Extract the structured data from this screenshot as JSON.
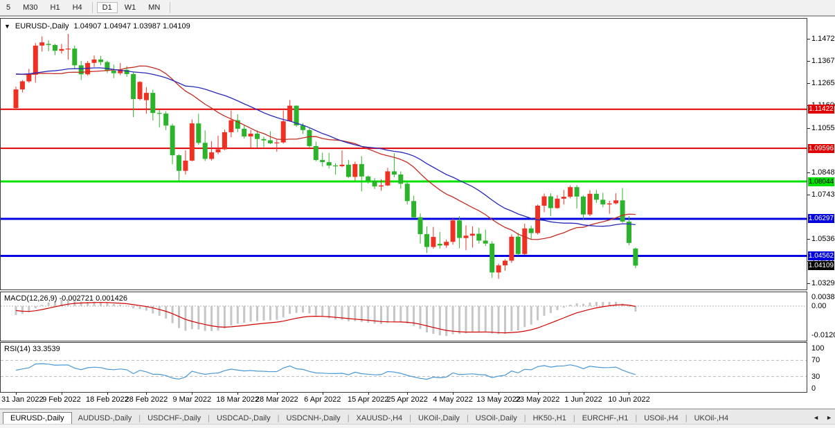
{
  "toolbar": {
    "items": [
      "5",
      "M30",
      "H1",
      "H4",
      "|",
      "D1",
      "W1",
      "MN",
      "|"
    ],
    "active": "D1"
  },
  "header": {
    "dropdown_icon": "▼",
    "symbol": "EURUSD-,Daily",
    "ohlc": "1.04907 1.04947 1.03987 1.04109"
  },
  "macd_panel": {
    "label": "MACD(12,26,9)",
    "values": "-0.002721 0.001426",
    "axis_labels": [
      "0.003865",
      "0.00",
      "-0.01208"
    ]
  },
  "rsi_panel": {
    "label": "RSI(14)",
    "value": "33.3539",
    "axis_labels": [
      "100",
      "70",
      "30",
      "0"
    ]
  },
  "tabbar": {
    "tabs": [
      {
        "label": "EURUSD-,Daily",
        "active": true
      },
      {
        "label": "AUDUSD-,Daily",
        "active": false
      },
      {
        "label": "USDCHF-,Daily",
        "active": false
      },
      {
        "label": "USDCAD-,Daily",
        "active": false
      },
      {
        "label": "USDCNH-,Daily",
        "active": false
      },
      {
        "label": "XAUUSD-,H4",
        "active": false
      },
      {
        "label": "UKOil-,Daily",
        "active": false
      },
      {
        "label": "USOil-,Daily",
        "active": false
      },
      {
        "label": "HK50-,H1",
        "active": false
      },
      {
        "label": "EURCHF-,H1",
        "active": false
      },
      {
        "label": "USOil-,H4",
        "active": false
      },
      {
        "label": "UKOil-,H4",
        "active": false
      }
    ],
    "left_arrow": "◄",
    "right_arrow": "►"
  },
  "chart_data": {
    "type": "candlestick",
    "title": "EURUSD-,Daily",
    "last_bar": {
      "open": 1.04907,
      "high": 1.04947,
      "low": 1.03987,
      "close": 1.04109
    },
    "current_price": 1.04109,
    "colors": {
      "bull": "#ef3124",
      "bear": "#2bb42b",
      "ma_fast": "#c62b21",
      "ma_slow": "#2828bb",
      "macd_hist": "#c6c6c6",
      "macd_signal": "#d40000",
      "rsi_line": "#4997d8",
      "level_dash": "#b8b8b8"
    },
    "price_axis_ticks": [
      "1.14720",
      "1.13670",
      "1.12650",
      "1.11600",
      "1.10550",
      "1.08480",
      "1.07430",
      "1.05360",
      "1.04310",
      "1.03290"
    ],
    "price_axis_badges": [
      {
        "text": "1.11422",
        "price": 1.11422,
        "bg": "#e10000",
        "fg": "#ffffff"
      },
      {
        "text": "1.09596",
        "price": 1.09596,
        "bg": "#e10000",
        "fg": "#ffffff"
      },
      {
        "text": "1.08044",
        "price": 1.08044,
        "bg": "#00e200",
        "fg": "#000000"
      },
      {
        "text": "1.06297",
        "price": 1.06297,
        "bg": "#0000e1",
        "fg": "#ffffff"
      },
      {
        "text": "1.04562",
        "price": 1.04562,
        "bg": "#0000e1",
        "fg": "#ffffff"
      },
      {
        "text": "1.04109",
        "price": 1.04109,
        "bg": "#000000",
        "fg": "#ffffff"
      }
    ],
    "levels": [
      {
        "price": 1.11422,
        "color": "#e10000",
        "width": 2
      },
      {
        "price": 1.09596,
        "color": "#e10000",
        "width": 2
      },
      {
        "price": 1.08044,
        "color": "#00e200",
        "width": 3
      },
      {
        "price": 1.06297,
        "color": "#0000e1",
        "width": 3
      },
      {
        "price": 1.04562,
        "color": "#0000e1",
        "width": 3
      }
    ],
    "x_ticks": [
      {
        "label": "31 Jan 2022",
        "index": 0
      },
      {
        "label": "9 Feb 2022",
        "index": 7
      },
      {
        "label": "18 Feb 2022",
        "index": 14
      },
      {
        "label": "28 Feb 2022",
        "index": 20
      },
      {
        "label": "9 Mar 2022",
        "index": 27
      },
      {
        "label": "18 Mar 2022",
        "index": 34
      },
      {
        "label": "28 Mar 2022",
        "index": 40
      },
      {
        "label": "6 Apr 2022",
        "index": 47
      },
      {
        "label": "15 Apr 2022",
        "index": 54
      },
      {
        "label": "25 Apr 2022",
        "index": 60
      },
      {
        "label": "4 May 2022",
        "index": 67
      },
      {
        "label": "13 May 2022",
        "index": 74
      },
      {
        "label": "23 May 2022",
        "index": 80
      },
      {
        "label": "1 Jun 2022",
        "index": 87
      },
      {
        "label": "10 Jun 2022",
        "index": 94
      }
    ],
    "moving_averages": [
      {
        "type": "sma",
        "period": 20
      },
      {
        "type": "sma",
        "period": 30
      }
    ],
    "indicators": {
      "macd": {
        "fast": 12,
        "slow": 26,
        "signal": 9,
        "current_main": -0.002721,
        "current_signal": 0.001426,
        "axis_max": 0.003865,
        "axis_min": -0.01208
      },
      "rsi": {
        "period": 14,
        "current": 33.3539,
        "levels": [
          70,
          30
        ],
        "axis_max": 100,
        "axis_min": 0
      }
    },
    "prehistory_closes": [
      1.1337,
      1.132,
      1.1311,
      1.1286,
      1.1284,
      1.1268,
      1.1244,
      1.1285,
      1.1294,
      1.1315,
      1.1288,
      1.1293,
      1.1261,
      1.1286,
      1.1326,
      1.13,
      1.1244,
      1.1325,
      1.1328,
      1.1322,
      1.137,
      1.13,
      1.1285,
      1.1318,
      1.1307,
      1.129,
      1.1327,
      1.1357,
      1.1411,
      1.1453,
      1.144,
      1.1412,
      1.1316,
      1.134,
      1.1312,
      1.1303,
      1.1343,
      1.1324,
      1.1287,
      1.1245,
      1.131,
      1.115,
      1.1121,
      1.1148
    ],
    "candles": [
      [
        1.1148,
        1.1248,
        1.1141,
        1.1235
      ],
      [
        1.1235,
        1.1279,
        1.1221,
        1.1273
      ],
      [
        1.1273,
        1.1331,
        1.1266,
        1.1304
      ],
      [
        1.1304,
        1.1452,
        1.1267,
        1.144
      ],
      [
        1.144,
        1.1483,
        1.1412,
        1.1455
      ],
      [
        1.1448,
        1.1465,
        1.1414,
        1.1443
      ],
      [
        1.1443,
        1.1448,
        1.1396,
        1.1416
      ],
      [
        1.1416,
        1.1448,
        1.1403,
        1.1424
      ],
      [
        1.1424,
        1.1495,
        1.1374,
        1.1426
      ],
      [
        1.1426,
        1.144,
        1.133,
        1.1348
      ],
      [
        1.1348,
        1.1369,
        1.128,
        1.1306
      ],
      [
        1.1306,
        1.1368,
        1.13,
        1.1359
      ],
      [
        1.1359,
        1.1395,
        1.134,
        1.1375
      ],
      [
        1.1375,
        1.1392,
        1.1348,
        1.1363
      ],
      [
        1.1363,
        1.137,
        1.1312,
        1.1323
      ],
      [
        1.1323,
        1.1351,
        1.1288,
        1.1311
      ],
      [
        1.1311,
        1.1359,
        1.1302,
        1.1327
      ],
      [
        1.1327,
        1.1344,
        1.1294,
        1.1307
      ],
      [
        1.1307,
        1.1315,
        1.1106,
        1.119
      ],
      [
        1.119,
        1.1274,
        1.1184,
        1.127
      ],
      [
        1.1185,
        1.1246,
        1.1121,
        1.1219
      ],
      [
        1.1219,
        1.1234,
        1.109,
        1.1125
      ],
      [
        1.1125,
        1.114,
        1.1058,
        1.1122
      ],
      [
        1.1122,
        1.1133,
        1.1045,
        1.1066
      ],
      [
        1.1066,
        1.1075,
        1.0885,
        1.0927
      ],
      [
        1.0927,
        1.0932,
        1.0806,
        1.0854
      ],
      [
        1.0854,
        1.095,
        1.0837,
        1.0902
      ],
      [
        1.0902,
        1.1095,
        1.0899,
        1.1076
      ],
      [
        1.1076,
        1.1121,
        1.0976,
        1.0985
      ],
      [
        1.0985,
        1.1043,
        1.09,
        1.091
      ],
      [
        1.091,
        1.0993,
        1.0902,
        1.0941
      ],
      [
        1.0941,
        1.1019,
        1.0932,
        1.0955
      ],
      [
        1.0955,
        1.1047,
        1.0951,
        1.1035
      ],
      [
        1.1035,
        1.1137,
        1.1012,
        1.1091
      ],
      [
        1.1091,
        1.1119,
        1.1035,
        1.1051
      ],
      [
        1.1051,
        1.1069,
        1.1005,
        1.1015
      ],
      [
        1.1015,
        1.1046,
        1.0961,
        1.1028
      ],
      [
        1.1028,
        1.1044,
        1.0963,
        1.1003
      ],
      [
        1.1003,
        1.1014,
        1.0965,
        1.0997
      ],
      [
        1.0997,
        1.1039,
        1.0979,
        1.0983
      ],
      [
        1.0983,
        1.1,
        1.0944,
        1.0987
      ],
      [
        1.0987,
        1.1137,
        1.0982,
        1.1086
      ],
      [
        1.1086,
        1.1185,
        1.1084,
        1.1159
      ],
      [
        1.1159,
        1.116,
        1.106,
        1.1067
      ],
      [
        1.1067,
        1.1077,
        1.1027,
        1.1045
      ],
      [
        1.1045,
        1.1055,
        1.0961,
        1.097
      ],
      [
        1.097,
        1.0991,
        1.0899,
        1.0905
      ],
      [
        1.0905,
        1.0939,
        1.0874,
        1.0895
      ],
      [
        1.0895,
        1.0938,
        1.0865,
        1.0879
      ],
      [
        1.0879,
        1.089,
        1.0836,
        1.0876
      ],
      [
        1.0876,
        1.095,
        1.0872,
        1.0883
      ],
      [
        1.0883,
        1.0905,
        1.0821,
        1.0826
      ],
      [
        1.0826,
        1.0897,
        1.0809,
        1.0886
      ],
      [
        1.0886,
        1.0923,
        1.0758,
        1.0828
      ],
      [
        1.0828,
        1.0832,
        1.0795,
        1.0807
      ],
      [
        1.0807,
        1.082,
        1.0769,
        1.0781
      ],
      [
        1.0781,
        1.0815,
        1.0761,
        1.0786
      ],
      [
        1.0786,
        1.0868,
        1.0783,
        1.0852
      ],
      [
        1.0852,
        1.0937,
        1.0824,
        1.0837
      ],
      [
        1.0837,
        1.0852,
        1.077,
        1.0794
      ],
      [
        1.0794,
        1.0801,
        1.0697,
        1.0713
      ],
      [
        1.0713,
        1.0738,
        1.0633,
        1.0637
      ],
      [
        1.0637,
        1.0655,
        1.0514,
        1.0558
      ],
      [
        1.0558,
        1.0594,
        1.047,
        1.0498
      ],
      [
        1.0498,
        1.0592,
        1.049,
        1.0545
      ],
      [
        1.0513,
        1.0568,
        1.0491,
        1.0505
      ],
      [
        1.0505,
        1.0533,
        1.0494,
        1.0522
      ],
      [
        1.0522,
        1.0632,
        1.0509,
        1.0622
      ],
      [
        1.0622,
        1.0642,
        1.0492,
        1.054
      ],
      [
        1.054,
        1.0599,
        1.0483,
        1.0551
      ],
      [
        1.0551,
        1.0594,
        1.0495,
        1.056
      ],
      [
        1.056,
        1.0587,
        1.0514,
        1.0528
      ],
      [
        1.0528,
        1.0579,
        1.0503,
        1.0514
      ],
      [
        1.0514,
        1.0525,
        1.0354,
        1.0379
      ],
      [
        1.0379,
        1.042,
        1.0349,
        1.0412
      ],
      [
        1.0412,
        1.0441,
        1.0387,
        1.0434
      ],
      [
        1.0434,
        1.0557,
        1.0424,
        1.0546
      ],
      [
        1.0546,
        1.0564,
        1.0459,
        1.0465
      ],
      [
        1.0465,
        1.0607,
        1.0461,
        1.0585
      ],
      [
        1.0585,
        1.0598,
        1.0532,
        1.0563
      ],
      [
        1.0563,
        1.0697,
        1.0556,
        1.0691
      ],
      [
        1.0691,
        1.0748,
        1.0661,
        1.0735
      ],
      [
        1.0735,
        1.0749,
        1.0642,
        1.068
      ],
      [
        1.068,
        1.074,
        1.0677,
        1.0724
      ],
      [
        1.0724,
        1.0765,
        1.0697,
        1.0733
      ],
      [
        1.0733,
        1.0786,
        1.0726,
        1.0778
      ],
      [
        1.0778,
        1.0787,
        1.0678,
        1.0734
      ],
      [
        1.0734,
        1.0739,
        1.0627,
        1.065
      ],
      [
        1.065,
        1.0764,
        1.0642,
        1.0747
      ],
      [
        1.0747,
        1.0765,
        1.0704,
        1.0719
      ],
      [
        1.0719,
        1.0751,
        1.0684,
        1.0697
      ],
      [
        1.0697,
        1.0714,
        1.0653,
        1.0702
      ],
      [
        1.0702,
        1.0749,
        1.0697,
        1.0716
      ],
      [
        1.0716,
        1.0774,
        1.0611,
        1.0617
      ],
      [
        1.0617,
        1.0643,
        1.0506,
        1.0517
      ],
      [
        1.04907,
        1.04947,
        1.03987,
        1.04109
      ]
    ]
  }
}
